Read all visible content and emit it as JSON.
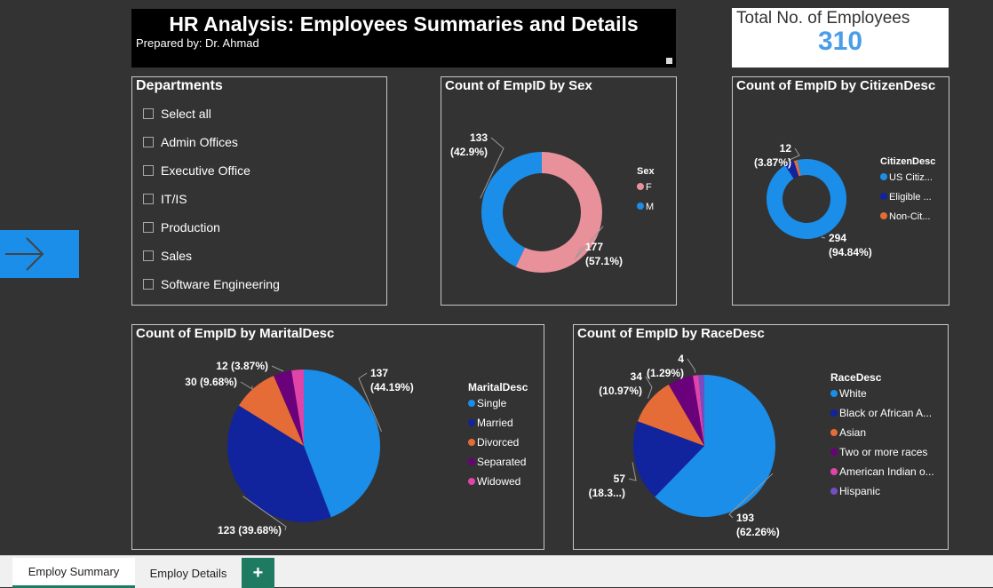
{
  "header": {
    "title": "HR Analysis: Employees Summaries and Details",
    "subtitle": "Prepared by: Dr. Ahmad"
  },
  "kpi": {
    "label": "Total No. of Employees",
    "value": "310",
    "value_color": "#4a9ee8"
  },
  "departments": {
    "title": "Departments",
    "items": [
      "Select all",
      "Admin Offices",
      "Executive Office",
      "IT/IS",
      "Production",
      "Sales",
      "Software Engineering"
    ]
  },
  "nav": {
    "icon": "arrow-right-icon"
  },
  "tabs": {
    "active": "Employ Summary",
    "inactive": "Employ Details",
    "add": "+"
  },
  "chart_data": [
    {
      "type": "pie",
      "donut": true,
      "title": "Count of EmpID by Sex",
      "legend_title": "Sex",
      "legend_position": "right",
      "slices": [
        {
          "name": "F",
          "value": 177,
          "label": "177",
          "pct": "(57.1%)",
          "color": "#e8919a"
        },
        {
          "name": "M",
          "value": 133,
          "label": "133",
          "pct": "(42.9%)",
          "color": "#1a8ee8"
        }
      ]
    },
    {
      "type": "pie",
      "donut": true,
      "title": "Count of EmpID by CitizenDesc",
      "legend_title": "CitizenDesc",
      "legend_position": "right",
      "slices": [
        {
          "name": "US Citiz...",
          "value": 294,
          "label": "294",
          "pct": "(94.84%)",
          "color": "#1a8ee8"
        },
        {
          "name": "Eligible ...",
          "value": 12,
          "label": "12",
          "pct": "(3.87%)",
          "color": "#12239e"
        },
        {
          "name": "Non-Cit...",
          "value": 4,
          "label": "",
          "pct": "",
          "color": "#e66c37"
        }
      ]
    },
    {
      "type": "pie",
      "donut": false,
      "title": "Count of EmpID by MaritalDesc",
      "legend_title": "MaritalDesc",
      "legend_position": "right",
      "slices": [
        {
          "name": "Single",
          "value": 137,
          "label": "137",
          "pct": "(44.19%)",
          "color": "#1a8ee8"
        },
        {
          "name": "Married",
          "value": 123,
          "label": "123 (39.68%)",
          "pct": "",
          "color": "#12239e"
        },
        {
          "name": "Divorced",
          "value": 30,
          "label": "30 (9.68%)",
          "pct": "",
          "color": "#e66c37"
        },
        {
          "name": "Separated",
          "value": 12,
          "label": "12 (3.87%)",
          "pct": "",
          "color": "#6b007b"
        },
        {
          "name": "Widowed",
          "value": 8,
          "label": "",
          "pct": "",
          "color": "#e044a7"
        }
      ]
    },
    {
      "type": "pie",
      "donut": false,
      "title": "Count of EmpID by RaceDesc",
      "legend_title": "RaceDesc",
      "legend_position": "right",
      "slices": [
        {
          "name": "White",
          "value": 193,
          "label": "193",
          "pct": "(62.26%)",
          "color": "#1a8ee8"
        },
        {
          "name": "Black or African A...",
          "value": 57,
          "label": "57",
          "pct": "(18.3...)",
          "color": "#12239e"
        },
        {
          "name": "Asian",
          "value": 34,
          "label": "34",
          "pct": "(10.97%)",
          "color": "#e66c37"
        },
        {
          "name": "Two or more races",
          "value": 18,
          "label": "",
          "pct": "",
          "color": "#6b007b"
        },
        {
          "name": "American Indian o...",
          "value": 4,
          "label": "4",
          "pct": "(1.29%)",
          "color": "#e044a7"
        },
        {
          "name": "Hispanic",
          "value": 4,
          "label": "",
          "pct": "",
          "color": "#744ec2"
        }
      ]
    }
  ]
}
